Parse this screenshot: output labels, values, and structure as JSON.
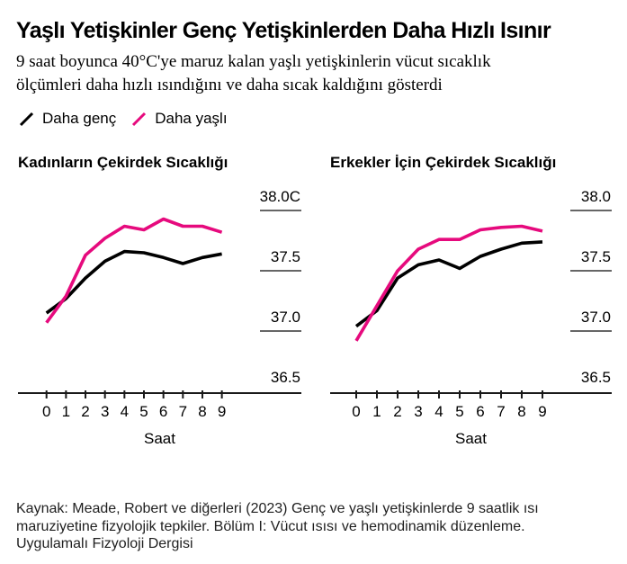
{
  "header": {
    "title": "Yaşlı Yetişkinler Genç Yetişkinlerden Daha Hızlı Isınır",
    "subtitle_line1": "9 saat boyunca 40°C'ye maruz kalan yaşlı yetişkinlerin vücut sıcaklık",
    "subtitle_line2": "ölçümleri daha hızlı ısındığını ve daha sıcak kaldığını gösterdi"
  },
  "legend": {
    "position": "top-left",
    "items": [
      {
        "label": "Daha genç",
        "color": "#000000"
      },
      {
        "label": "Daha yaşlı",
        "color": "#E60A7D"
      }
    ]
  },
  "colors": {
    "younger_line": "#000000",
    "older_line": "#E60A7D",
    "axis": "#1a1a1a",
    "tick_underline": "#666666"
  },
  "chart_data": [
    {
      "type": "line",
      "title": "Kadınların Çekirdek Sıcaklığı",
      "xlabel": "Saat",
      "x": [
        0,
        1,
        2,
        3,
        4,
        5,
        6,
        7,
        8,
        9
      ],
      "ylim": [
        36.5,
        38.0
      ],
      "grid": false,
      "yticks": {
        "labels": [
          "38.0C",
          "37.5",
          "37.0",
          "36.5"
        ],
        "values": [
          38.0,
          37.5,
          37.0,
          36.5
        ]
      },
      "series": [
        {
          "name": "Daha genç",
          "color": "#000000",
          "values": [
            37.03,
            37.15,
            37.32,
            37.46,
            37.54,
            37.53,
            37.49,
            37.44,
            37.49,
            37.52
          ]
        },
        {
          "name": "Daha yaşlı",
          "color": "#E60A7D",
          "values": [
            36.95,
            37.17,
            37.51,
            37.65,
            37.75,
            37.72,
            37.81,
            37.75,
            37.75,
            37.7
          ]
        }
      ]
    },
    {
      "type": "line",
      "title": "Erkekler İçin Çekirdek Sıcaklığı",
      "xlabel": "Saat",
      "x": [
        0,
        1,
        2,
        3,
        4,
        5,
        6,
        7,
        8,
        9
      ],
      "ylim": [
        36.5,
        38.0
      ],
      "grid": false,
      "yticks": {
        "labels": [
          "38.0",
          "37.5",
          "37.0",
          "36.5"
        ],
        "values": [
          38.0,
          37.5,
          37.0,
          36.5
        ]
      },
      "series": [
        {
          "name": "Daha genç",
          "color": "#000000",
          "values": [
            36.92,
            37.05,
            37.32,
            37.43,
            37.47,
            37.4,
            37.5,
            37.56,
            37.61,
            37.62
          ]
        },
        {
          "name": "Daha yaşlı",
          "color": "#E60A7D",
          "values": [
            36.8,
            37.09,
            37.38,
            37.56,
            37.64,
            37.64,
            37.72,
            37.74,
            37.75,
            37.71
          ]
        }
      ]
    }
  ],
  "source": {
    "lines": [
      "Kaynak: Meade, Robert ve diğerleri (2023) Genç ve yaşlı yetişkinlerde 9 saatlik ısı",
      "maruziyetine fizyolojik tepkiler. Bölüm I: Vücut ısısı ve hemodinamik düzenleme.",
      "Uygulamalı Fizyoloji Dergisi"
    ]
  }
}
